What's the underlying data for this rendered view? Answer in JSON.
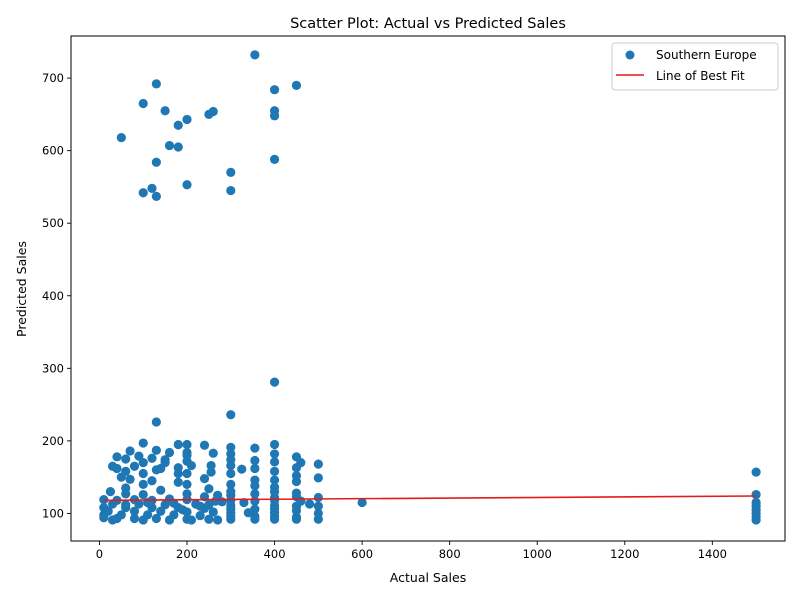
{
  "chart_data": {
    "type": "scatter",
    "title": "Scatter Plot: Actual vs Predicted Sales",
    "xlabel": "Actual Sales",
    "ylabel": "Predicted Sales",
    "xlim": [
      -65,
      1566
    ],
    "ylim": [
      62,
      758
    ],
    "xticks": [
      0,
      200,
      400,
      600,
      800,
      1000,
      1200,
      1400
    ],
    "yticks": [
      100,
      200,
      300,
      400,
      500,
      600,
      700
    ],
    "grid": false,
    "legend_position": "top-right",
    "series": [
      {
        "name": "Southern Europe",
        "color": "#1f77b4",
        "marker": "circle",
        "points": [
          [
            355,
            732
          ],
          [
            130,
            692
          ],
          [
            450,
            690
          ],
          [
            400,
            684
          ],
          [
            100,
            665
          ],
          [
            150,
            655
          ],
          [
            260,
            654
          ],
          [
            400,
            655
          ],
          [
            250,
            650
          ],
          [
            400,
            648
          ],
          [
            200,
            643
          ],
          [
            180,
            635
          ],
          [
            50,
            618
          ],
          [
            160,
            607
          ],
          [
            180,
            605
          ],
          [
            400,
            588
          ],
          [
            130,
            584
          ],
          [
            300,
            570
          ],
          [
            200,
            553
          ],
          [
            120,
            548
          ],
          [
            300,
            545
          ],
          [
            100,
            542
          ],
          [
            130,
            537
          ],
          [
            400,
            281
          ],
          [
            300,
            236
          ],
          [
            130,
            226
          ],
          [
            100,
            197
          ],
          [
            180,
            195
          ],
          [
            200,
            195
          ],
          [
            240,
            194
          ],
          [
            400,
            195
          ],
          [
            300,
            191
          ],
          [
            355,
            190
          ],
          [
            130,
            187
          ],
          [
            70,
            186
          ],
          [
            160,
            184
          ],
          [
            200,
            184
          ],
          [
            260,
            183
          ],
          [
            300,
            182
          ],
          [
            400,
            182
          ],
          [
            40,
            178
          ],
          [
            90,
            179
          ],
          [
            450,
            178
          ],
          [
            120,
            176
          ],
          [
            60,
            175
          ],
          [
            150,
            174
          ],
          [
            300,
            174
          ],
          [
            355,
            173
          ],
          [
            200,
            172
          ],
          [
            400,
            171
          ],
          [
            460,
            170
          ],
          [
            500,
            168
          ],
          [
            30,
            165
          ],
          [
            210,
            166
          ],
          [
            255,
            166
          ],
          [
            300,
            166
          ],
          [
            80,
            165
          ],
          [
            180,
            163
          ],
          [
            450,
            163
          ],
          [
            40,
            162
          ],
          [
            140,
            162
          ],
          [
            355,
            162
          ],
          [
            325,
            161
          ],
          [
            1500,
            157
          ],
          [
            60,
            158
          ],
          [
            255,
            157
          ],
          [
            400,
            158
          ],
          [
            300,
            155
          ],
          [
            100,
            155
          ],
          [
            200,
            155
          ],
          [
            450,
            152
          ],
          [
            500,
            149
          ],
          [
            70,
            147
          ],
          [
            240,
            148
          ],
          [
            355,
            146
          ],
          [
            400,
            146
          ],
          [
            450,
            144
          ],
          [
            180,
            143
          ],
          [
            100,
            140
          ],
          [
            200,
            140
          ],
          [
            300,
            140
          ],
          [
            355,
            138
          ],
          [
            400,
            136
          ],
          [
            60,
            135
          ],
          [
            250,
            134
          ],
          [
            300,
            130
          ],
          [
            140,
            132
          ],
          [
            25,
            130
          ],
          [
            400,
            130
          ],
          [
            450,
            128
          ],
          [
            355,
            127
          ],
          [
            60,
            127
          ],
          [
            1500,
            126
          ],
          [
            200,
            127
          ],
          [
            100,
            126
          ],
          [
            300,
            125
          ],
          [
            450,
            123
          ],
          [
            500,
            122
          ],
          [
            240,
            123
          ],
          [
            400,
            122
          ],
          [
            160,
            120
          ],
          [
            10,
            119
          ],
          [
            40,
            118
          ],
          [
            80,
            119
          ],
          [
            120,
            118
          ],
          [
            200,
            119
          ],
          [
            265,
            117
          ],
          [
            300,
            118
          ],
          [
            355,
            117
          ],
          [
            400,
            118
          ],
          [
            460,
            117
          ],
          [
            480,
            113
          ],
          [
            330,
            115
          ],
          [
            600,
            115
          ],
          [
            1500,
            115
          ],
          [
            30,
            113
          ],
          [
            90,
            113
          ],
          [
            150,
            112
          ],
          [
            250,
            112
          ],
          [
            300,
            111
          ],
          [
            400,
            111
          ],
          [
            450,
            110
          ],
          [
            500,
            110
          ],
          [
            1500,
            110
          ],
          [
            10,
            108
          ],
          [
            60,
            108
          ],
          [
            120,
            108
          ],
          [
            180,
            108
          ],
          [
            240,
            107
          ],
          [
            300,
            106
          ],
          [
            355,
            106
          ],
          [
            400,
            106
          ],
          [
            450,
            104
          ],
          [
            1500,
            105
          ],
          [
            20,
            103
          ],
          [
            80,
            103
          ],
          [
            140,
            103
          ],
          [
            200,
            102
          ],
          [
            260,
            102
          ],
          [
            300,
            101
          ],
          [
            340,
            101
          ],
          [
            400,
            101
          ],
          [
            500,
            100
          ],
          [
            1500,
            100
          ],
          [
            10,
            98
          ],
          [
            50,
            98
          ],
          [
            110,
            98
          ],
          [
            170,
            98
          ],
          [
            230,
            97
          ],
          [
            300,
            96
          ],
          [
            355,
            96
          ],
          [
            400,
            96
          ],
          [
            450,
            95
          ],
          [
            1500,
            95
          ],
          [
            10,
            94
          ],
          [
            40,
            93
          ],
          [
            80,
            93
          ],
          [
            130,
            93
          ],
          [
            200,
            92
          ],
          [
            250,
            92
          ],
          [
            300,
            92
          ],
          [
            355,
            92
          ],
          [
            400,
            92
          ],
          [
            450,
            92
          ],
          [
            500,
            92
          ],
          [
            1500,
            91
          ],
          [
            30,
            91
          ],
          [
            100,
            91
          ],
          [
            160,
            91
          ],
          [
            210,
            91
          ],
          [
            270,
            91
          ],
          [
            60,
            112
          ],
          [
            110,
            115
          ],
          [
            170,
            114
          ],
          [
            220,
            113
          ],
          [
            280,
            116
          ],
          [
            130,
            160
          ],
          [
            150,
            170
          ],
          [
            100,
            170
          ],
          [
            50,
            150
          ],
          [
            120,
            145
          ],
          [
            180,
            155
          ],
          [
            200,
            180
          ],
          [
            270,
            125
          ],
          [
            230,
            110
          ],
          [
            190,
            105
          ]
        ]
      },
      {
        "name": "Line of Best Fit",
        "color": "#e41a1c",
        "type": "line",
        "points": [
          [
            10,
            118
          ],
          [
            1500,
            124
          ]
        ]
      }
    ]
  }
}
